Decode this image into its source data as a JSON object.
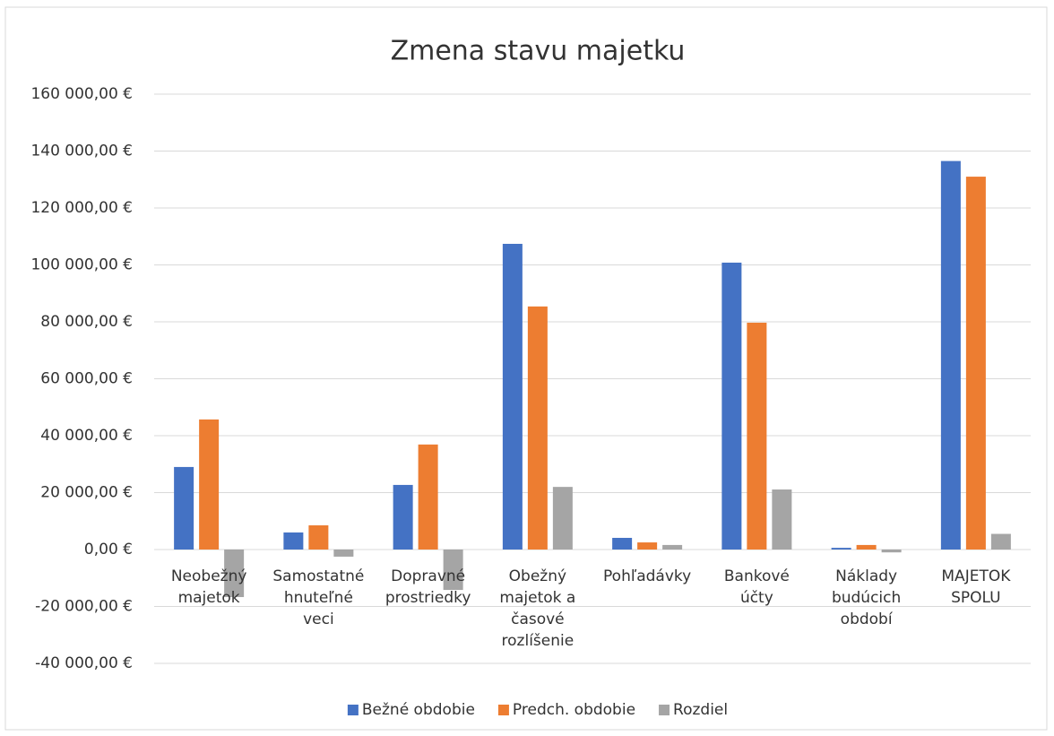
{
  "chart_data": {
    "type": "bar",
    "title": "Zmena stavu majetku",
    "categories": [
      "Neobežný majetok",
      "Samostatné hnuteľné veci",
      "Dopravné prostriedky",
      "Obežný majetok a časové rozlíšenie",
      "Pohľadávky",
      "Bankové účty",
      "Náklady budúcich období",
      "MAJETOK SPOLU"
    ],
    "series": [
      {
        "name": "Bežné obdobie",
        "color": "#4472c4",
        "values": [
          29000,
          6000,
          22700,
          107400,
          4100,
          100800,
          600,
          136500
        ]
      },
      {
        "name": "Predch. obdobie",
        "color": "#ed7d31",
        "values": [
          45700,
          8500,
          36900,
          85400,
          2500,
          79700,
          1600,
          131000
        ]
      },
      {
        "name": "Rozdiel",
        "color": "#a5a5a5",
        "values": [
          -16700,
          -2500,
          -14200,
          22000,
          1600,
          21100,
          -1000,
          5500
        ]
      }
    ],
    "ylim": [
      -40000,
      160000
    ],
    "yticks": [
      {
        "value": -40000,
        "label": "-40 000,00 €"
      },
      {
        "value": -20000,
        "label": "-20 000,00 €"
      },
      {
        "value": 0,
        "label": "0,00 €"
      },
      {
        "value": 20000,
        "label": "20 000,00 €"
      },
      {
        "value": 40000,
        "label": "40 000,00 €"
      },
      {
        "value": 60000,
        "label": "60 000,00 €"
      },
      {
        "value": 80000,
        "label": "80 000,00 €"
      },
      {
        "value": 100000,
        "label": "100 000,00 €"
      },
      {
        "value": 120000,
        "label": "120 000,00 €"
      },
      {
        "value": 140000,
        "label": "140 000,00 €"
      },
      {
        "value": 160000,
        "label": "160 000,00 €"
      }
    ],
    "grid": true,
    "legend": "bottom"
  }
}
